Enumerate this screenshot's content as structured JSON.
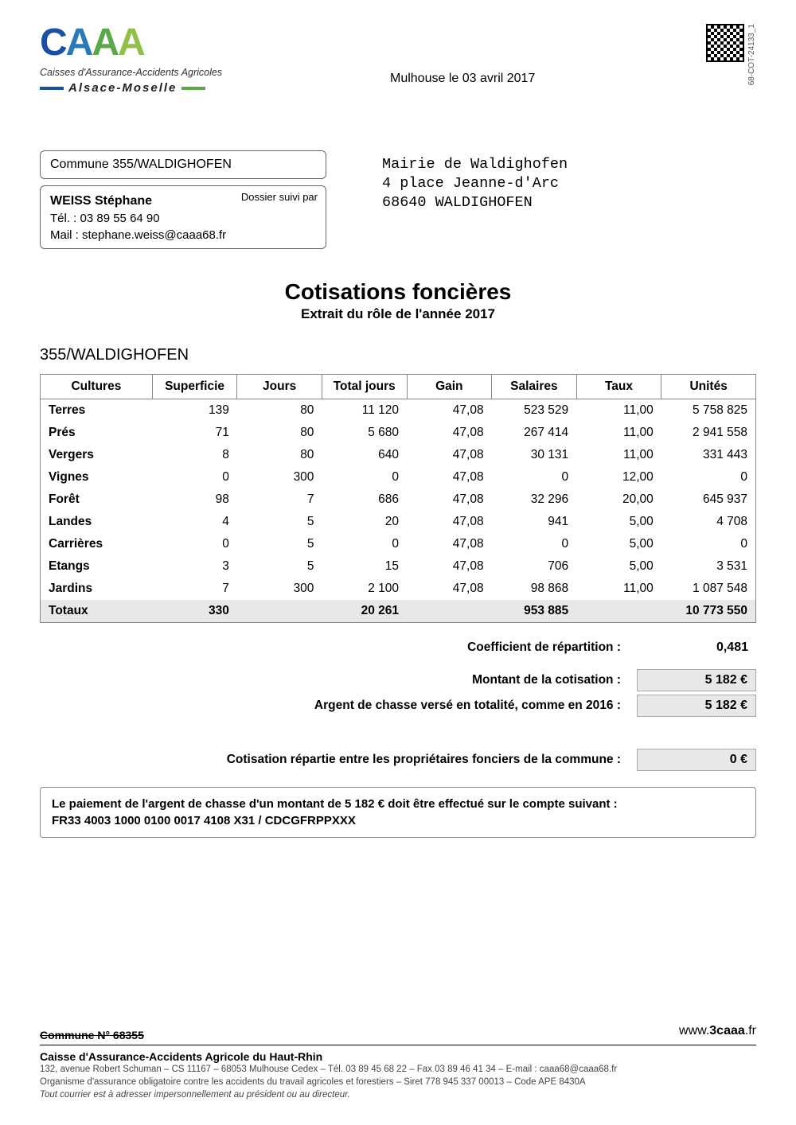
{
  "logo": {
    "letters": [
      "C",
      "A",
      "A",
      "A"
    ],
    "subtitle": "Caisses d'Assurance-Accidents Agricoles",
    "region": "Alsace-Moselle"
  },
  "doc_id": "68-COT-24133_1",
  "date_line": "Mulhouse le 03 avril 2017",
  "commune_box": "Commune 355/WALDIGHOFEN",
  "dossier_label": "Dossier suivi par",
  "contact": {
    "name": "WEISS Stéphane",
    "tel": "Tél. : 03 89 55 64 90",
    "mail": "Mail : stephane.weiss@caaa68.fr"
  },
  "address": {
    "l1": "Mairie de Waldighofen",
    "l2": "4 place Jeanne-d'Arc",
    "l3": "68640 WALDIGHOFEN"
  },
  "title": {
    "main": "Cotisations foncières",
    "sub": "Extrait du rôle de l'année 2017"
  },
  "section": "355/WALDIGHOFEN",
  "table": {
    "headers": [
      "Cultures",
      "Superficie",
      "Jours",
      "Total jours",
      "Gain",
      "Salaires",
      "Taux",
      "Unités"
    ],
    "rows": [
      [
        "Terres",
        "139",
        "80",
        "11 120",
        "47,08",
        "523 529",
        "11,00",
        "5 758 825"
      ],
      [
        "Prés",
        "71",
        "80",
        "5 680",
        "47,08",
        "267 414",
        "11,00",
        "2 941 558"
      ],
      [
        "Vergers",
        "8",
        "80",
        "640",
        "47,08",
        "30 131",
        "11,00",
        "331 443"
      ],
      [
        "Vignes",
        "0",
        "300",
        "0",
        "47,08",
        "0",
        "12,00",
        "0"
      ],
      [
        "Forêt",
        "98",
        "7",
        "686",
        "47,08",
        "32 296",
        "20,00",
        "645 937"
      ],
      [
        "Landes",
        "4",
        "5",
        "20",
        "47,08",
        "941",
        "5,00",
        "4 708"
      ],
      [
        "Carrières",
        "0",
        "5",
        "0",
        "47,08",
        "0",
        "5,00",
        "0"
      ],
      [
        "Etangs",
        "3",
        "5",
        "15",
        "47,08",
        "706",
        "5,00",
        "3 531"
      ],
      [
        "Jardins",
        "7",
        "300",
        "2 100",
        "47,08",
        "98 868",
        "11,00",
        "1 087 548"
      ]
    ],
    "totals": [
      "Totaux",
      "330",
      "",
      "20 261",
      "",
      "953 885",
      "",
      "10 773 550"
    ]
  },
  "summary": {
    "coef_label": "Coefficient de répartition :",
    "coef_val": "0,481",
    "montant_label": "Montant de la cotisation :",
    "montant_val": "5 182 €",
    "chasse_label": "Argent de chasse versé en totalité, comme en 2016 :",
    "chasse_val": "5 182 €",
    "repartie_label": "Cotisation répartie entre les propriétaires fonciers de la commune :",
    "repartie_val": "0 €"
  },
  "payment": {
    "l1": "Le paiement de l'argent de chasse d'un montant de 5 182 € doit être effectué sur le compte suivant :",
    "l2": "FR33 4003 1000 0100 0017 4108 X31 / CDCGFRPPXXX"
  },
  "footer": {
    "strike": "Commune N° 68355",
    "org": "Caisse d'Assurance-Accidents Agricole du Haut-Rhin",
    "line1": "132, avenue Robert Schuman – CS 11167 – 68053 Mulhouse Cedex – Tél. 03 89 45 68 22 – Fax 03 89 46 41 34 – E-mail : caaa68@caaa68.fr",
    "line2": "Organisme d'assurance obligatoire contre les accidents du travail agricoles et forestiers – Siret 778 945 337 00013 – Code APE 8430A",
    "line3": "Tout courrier est à adresser impersonnellement au président ou au directeur.",
    "url_pre": "www.",
    "url_bold": "3caaa",
    "url_post": ".fr"
  }
}
